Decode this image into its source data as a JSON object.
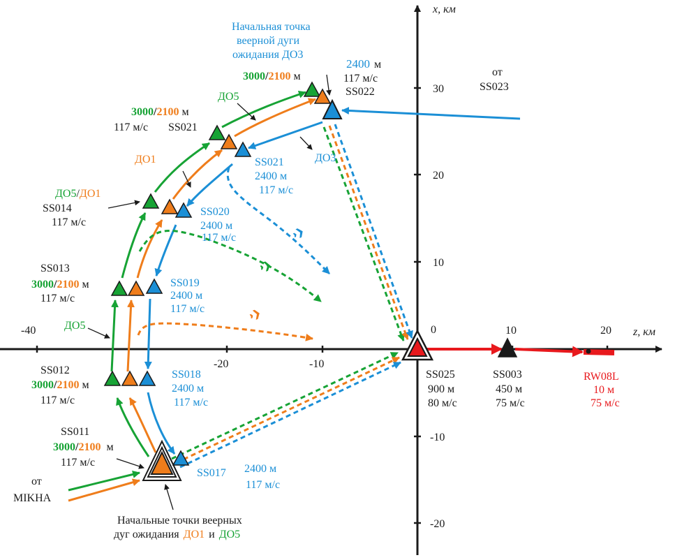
{
  "axes": {
    "x_label": "x, км",
    "z_label": "z, км",
    "origin_label": "0",
    "z_ticks": [
      "-40",
      "-20",
      "-10",
      "10",
      "20"
    ],
    "x_ticks": [
      "30",
      "20",
      "10",
      "-10",
      "-20"
    ]
  },
  "colors": {
    "do5": "#17a335",
    "do1": "#ef7d1b",
    "do3": "#1b8fd6",
    "runway": "#e8191d",
    "black": "#1a1a1a"
  },
  "icons": [
    "airplane-icon"
  ],
  "annotations": {
    "do3_start_title": [
      "Начальная точка",
      "веерной дуги",
      "ожидания ДО3"
    ],
    "do1_do5_start_title_line1": "Начальные точки веерных",
    "do1_do5_start_title_prefix": "дуг ожидания",
    "do1_do5_start_title_do1": "ДО1",
    "do1_do5_start_title_and": "и",
    "do1_do5_start_title_do5": "ДО5",
    "from_ss023_line1": "от",
    "from_ss023_line2": "SS023",
    "from_mikha_line1": "от",
    "from_mikha_line2": "MIKHA"
  },
  "route_labels": {
    "do5": "ДО5",
    "do1": "ДО1",
    "do3": "ДО3",
    "do5_slash": "ДО5",
    "slash": "/",
    "do1_slash": "ДО1",
    "do5_left": "ДО5"
  },
  "alt_parts": {
    "a3000": "3000",
    "slash": "/",
    "a2100": "2100",
    "m": "м",
    "a2400": "2400"
  },
  "waypoints": {
    "ss022": {
      "name": "SS022",
      "speed": "117 м/с"
    },
    "ss021_left": {
      "name": "SS021",
      "speed": "117 м/с"
    },
    "ss021_right": {
      "name": "SS021",
      "alt": "2400 м",
      "speed": "117 м/с"
    },
    "ss014": {
      "name": "SS014",
      "speed": "117 м/с"
    },
    "ss020": {
      "name": "SS020",
      "alt": "2400 м",
      "speed": "117 м/с"
    },
    "ss013": {
      "name": "SS013",
      "speed": "117 м/с"
    },
    "ss019": {
      "name": "SS019",
      "alt": "2400 м",
      "speed": "117 м/с"
    },
    "ss012": {
      "name": "SS012",
      "speed": "117 м/с"
    },
    "ss018": {
      "name": "SS018",
      "alt": "2400 м",
      "speed": "117 м/с"
    },
    "ss011": {
      "name": "SS011",
      "speed": "117 м/с"
    },
    "ss017": {
      "name": "SS017",
      "alt": "2400 м",
      "speed": "117 м/с"
    },
    "ss025": {
      "name": "SS025",
      "alt": "900 м",
      "speed": "80 м/с"
    },
    "ss003": {
      "name": "SS003",
      "alt": "450 м",
      "speed": "75 м/с"
    },
    "rw08l": {
      "name": "RW08L",
      "alt": "10 м",
      "speed": "75 м/с"
    }
  }
}
